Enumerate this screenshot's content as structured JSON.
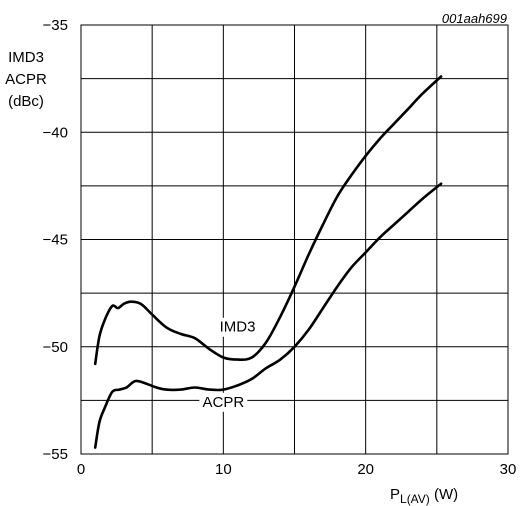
{
  "chart_data": {
    "type": "line",
    "figure_code": "001aah699",
    "ylabel_lines": [
      "IMD3",
      "ACPR",
      "(dBc)"
    ],
    "xlabel_main": "P",
    "xlabel_sub": "L(AV)",
    "xlabel_unit": " (W)",
    "xlim": [
      0,
      30
    ],
    "ylim": [
      -55,
      -35
    ],
    "x_ticks": [
      0,
      10,
      20,
      30
    ],
    "x_tick_labels": [
      "0",
      "10",
      "20",
      "30"
    ],
    "y_ticks": [
      -35,
      -40,
      -45,
      -50,
      -55
    ],
    "y_tick_labels": [
      "−35",
      "−40",
      "−45",
      "−50",
      "−55"
    ],
    "x_grid_step": 5,
    "y_grid_step": 2.5,
    "grid": true,
    "series": [
      {
        "name": "IMD3",
        "x": [
          1.0,
          1.3,
          1.7,
          2.2,
          2.6,
          3.0,
          3.5,
          4.2,
          5.0,
          6.0,
          7.0,
          8.0,
          9.0,
          10.0,
          11.0,
          12.0,
          13.0,
          14.0,
          15.0,
          16.0,
          17.0,
          18.0,
          19.0,
          20.0,
          21.0,
          22.0,
          23.0,
          24.0,
          25.3
        ],
        "values": [
          -50.8,
          -49.5,
          -48.7,
          -48.1,
          -48.2,
          -48.0,
          -47.9,
          -48.0,
          -48.5,
          -49.1,
          -49.4,
          -49.6,
          -50.1,
          -50.5,
          -50.6,
          -50.5,
          -49.8,
          -48.6,
          -47.2,
          -45.7,
          -44.3,
          -43.0,
          -42.0,
          -41.1,
          -40.3,
          -39.6,
          -38.9,
          -38.2,
          -37.4
        ]
      },
      {
        "name": "ACPR",
        "x": [
          1.0,
          1.3,
          1.7,
          2.2,
          2.7,
          3.2,
          3.8,
          4.5,
          5.3,
          6.0,
          7.0,
          8.0,
          9.0,
          10.0,
          11.0,
          12.0,
          13.0,
          14.0,
          15.0,
          16.0,
          17.0,
          18.0,
          19.0,
          20.0,
          21.0,
          22.0,
          23.0,
          24.0,
          25.3
        ],
        "values": [
          -54.7,
          -53.5,
          -52.8,
          -52.1,
          -52.0,
          -51.9,
          -51.6,
          -51.7,
          -51.9,
          -52.0,
          -52.0,
          -51.9,
          -52.0,
          -52.0,
          -51.8,
          -51.5,
          -51.0,
          -50.6,
          -50.0,
          -49.2,
          -48.2,
          -47.2,
          -46.3,
          -45.6,
          -44.9,
          -44.3,
          -43.7,
          -43.1,
          -42.4
        ]
      }
    ],
    "annotations": [
      {
        "text": "IMD3",
        "x": 11.0,
        "y": -49.3
      },
      {
        "text": "ACPR",
        "x": 10.0,
        "y": -52.8
      }
    ]
  }
}
